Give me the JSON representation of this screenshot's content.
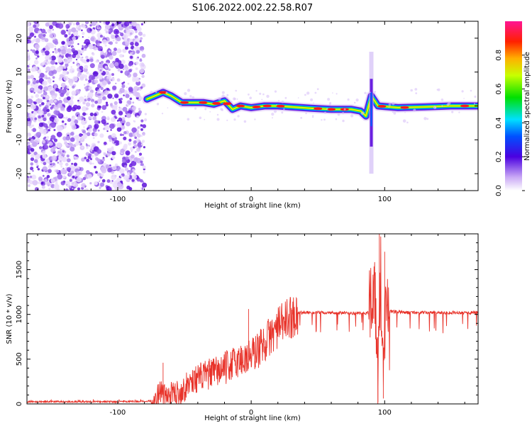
{
  "title": "S106.2022.002.22.58.R07",
  "colors": {
    "snr_line": "#e8332a",
    "axis": "#000000",
    "spectrogram_noise": "#8a3cf0",
    "spectrogram_line": "#ff1a1a"
  },
  "chart_data": [
    {
      "type": "heatmap",
      "title": "S106.2022.002.22.58.R07",
      "xlabel": "Height of straight line (km)",
      "ylabel": "Frequency (Hz)",
      "xlim": [
        -168,
        170
      ],
      "ylim": [
        -25,
        25
      ],
      "x_ticks": [
        -100,
        0,
        100
      ],
      "y_ticks": [
        -20,
        -10,
        0,
        10,
        20
      ],
      "noise_region_x": [
        -168,
        -80
      ],
      "ridge": {
        "name": "",
        "points": [
          {
            "x": -78,
            "y": 2
          },
          {
            "x": -72,
            "y": 3
          },
          {
            "x": -66,
            "y": 4
          },
          {
            "x": -60,
            "y": 3
          },
          {
            "x": -52,
            "y": 1
          },
          {
            "x": -44,
            "y": 1
          },
          {
            "x": -36,
            "y": 1
          },
          {
            "x": -28,
            "y": 0.5
          },
          {
            "x": -20,
            "y": 1.5
          },
          {
            "x": -14,
            "y": -1
          },
          {
            "x": -8,
            "y": 0
          },
          {
            "x": 0,
            "y": -0.5
          },
          {
            "x": 10,
            "y": 0
          },
          {
            "x": 20,
            "y": 0
          },
          {
            "x": 30,
            "y": -0.3
          },
          {
            "x": 45,
            "y": -0.7
          },
          {
            "x": 60,
            "y": -1
          },
          {
            "x": 75,
            "y": -1
          },
          {
            "x": 82,
            "y": -1.5
          },
          {
            "x": 86,
            "y": -3
          },
          {
            "x": 90,
            "y": 3
          },
          {
            "x": 95,
            "y": 0
          },
          {
            "x": 110,
            "y": -0.5
          },
          {
            "x": 130,
            "y": -0.3
          },
          {
            "x": 150,
            "y": 0
          },
          {
            "x": 170,
            "y": 0
          }
        ]
      },
      "colorbar": {
        "label": "Normalized spectral amplitude",
        "range": [
          0.0,
          1.0
        ],
        "ticks": [
          "0.0",
          "0.2",
          "0.4",
          "0.6",
          "0.8"
        ]
      }
    },
    {
      "type": "line",
      "title": "",
      "xlabel": "Height of straight line (km)",
      "ylabel": "SNR (10 * v/v)",
      "xlim": [
        -168,
        170
      ],
      "ylim": [
        0,
        1900
      ],
      "x_ticks": [
        -100,
        0,
        100
      ],
      "y_ticks": [
        0,
        500,
        1000,
        1500
      ],
      "series": [
        {
          "name": "",
          "points": [
            {
              "x": -168,
              "y": 25
            },
            {
              "x": -140,
              "y": 25
            },
            {
              "x": -100,
              "y": 25
            },
            {
              "x": -80,
              "y": 28
            },
            {
              "x": -72,
              "y": 40
            },
            {
              "x": -68,
              "y": 150
            },
            {
              "x": -64,
              "y": 80
            },
            {
              "x": -58,
              "y": 120
            },
            {
              "x": -52,
              "y": 140
            },
            {
              "x": -45,
              "y": 260
            },
            {
              "x": -38,
              "y": 300
            },
            {
              "x": -30,
              "y": 340
            },
            {
              "x": -22,
              "y": 380
            },
            {
              "x": -15,
              "y": 440
            },
            {
              "x": -8,
              "y": 490
            },
            {
              "x": -2,
              "y": 520
            },
            {
              "x": 5,
              "y": 600
            },
            {
              "x": 12,
              "y": 720
            },
            {
              "x": 20,
              "y": 850
            },
            {
              "x": 28,
              "y": 960
            },
            {
              "x": 36,
              "y": 1020
            },
            {
              "x": 50,
              "y": 1020
            },
            {
              "x": 70,
              "y": 1015
            },
            {
              "x": 85,
              "y": 1010
            },
            {
              "x": 90,
              "y": 1040
            },
            {
              "x": 93,
              "y": 1300
            },
            {
              "x": 95,
              "y": 200
            },
            {
              "x": 97,
              "y": 1500
            },
            {
              "x": 99,
              "y": 400
            },
            {
              "x": 101,
              "y": 1350
            },
            {
              "x": 103,
              "y": 1030
            },
            {
              "x": 120,
              "y": 1020
            },
            {
              "x": 140,
              "y": 1020
            },
            {
              "x": 170,
              "y": 1020
            }
          ]
        }
      ]
    }
  ]
}
